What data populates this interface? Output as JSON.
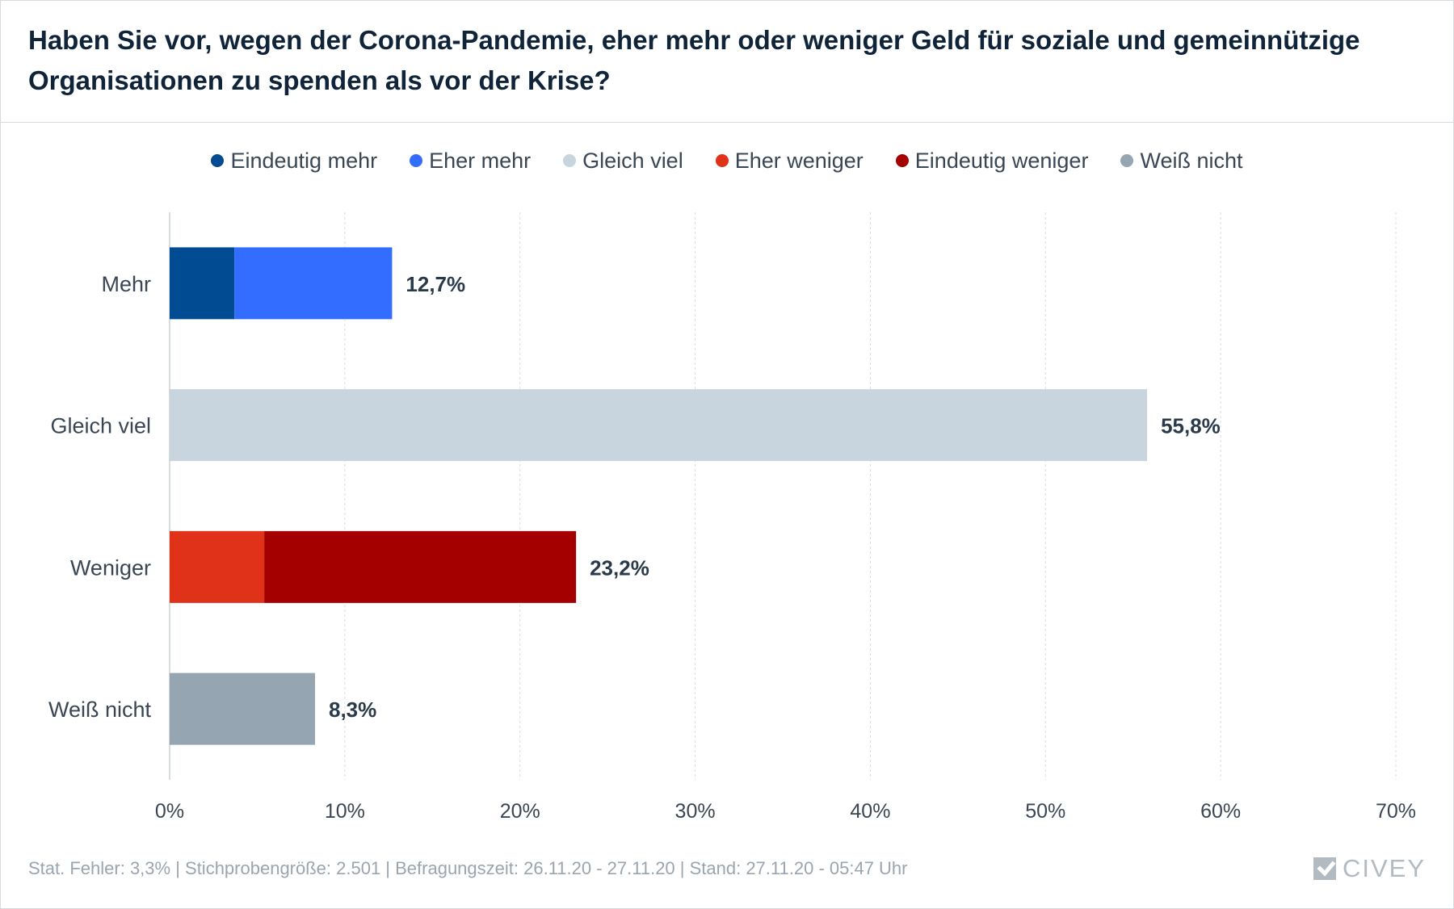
{
  "title": "Haben Sie vor, wegen der Corona-Pandemie, eher mehr oder weniger Geld für soziale und gemeinnützige Organisationen zu spenden als vor der Krise?",
  "footer": "Stat. Fehler: 3,3% | Stichprobengröße: 2.501 | Befragungszeit: 26.11.20 - 27.11.20 | Stand: 27.11.20 - 05:47 Uhr",
  "logo_text": "CIVEY",
  "chart_data": {
    "type": "bar",
    "orientation": "horizontal",
    "stacked": true,
    "categories": [
      "Mehr",
      "Gleich viel",
      "Weniger",
      "Weiß nicht"
    ],
    "series": [
      {
        "name": "Eindeutig mehr",
        "color": "#004b91",
        "values": [
          3.7,
          0,
          0,
          0
        ]
      },
      {
        "name": "Eher mehr",
        "color": "#336dff",
        "values": [
          9.0,
          0,
          0,
          0
        ]
      },
      {
        "name": "Gleich viel",
        "color": "#c8d5df",
        "values": [
          0,
          55.8,
          0,
          0
        ]
      },
      {
        "name": "Eher weniger",
        "color": "#e03218",
        "values": [
          0,
          0,
          5.4,
          0
        ]
      },
      {
        "name": "Eindeutig weniger",
        "color": "#a50000",
        "values": [
          0,
          0,
          17.8,
          0
        ]
      },
      {
        "name": "Weiß nicht",
        "color": "#95a5b2",
        "values": [
          0,
          0,
          0,
          8.3
        ]
      }
    ],
    "totals": [
      "12,7%",
      "55,8%",
      "23,2%",
      "8,3%"
    ],
    "xlim": [
      0,
      70
    ],
    "xticks": [
      0,
      10,
      20,
      30,
      40,
      50,
      60,
      70
    ],
    "xtick_labels": [
      "0%",
      "10%",
      "20%",
      "30%",
      "40%",
      "50%",
      "60%",
      "70%"
    ],
    "grid": true,
    "legend_position": "top-center"
  }
}
